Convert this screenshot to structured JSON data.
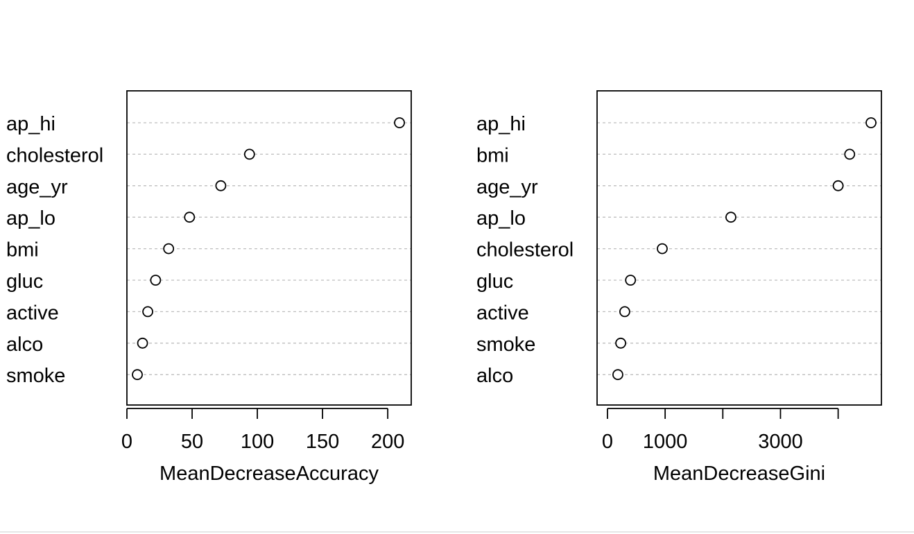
{
  "chart_data": [
    {
      "type": "scatter",
      "subtype": "dotchart",
      "xlabel": "MeanDecreaseAccuracy",
      "ylabel": "",
      "title": "",
      "categories": [
        "ap_hi",
        "cholesterol",
        "age_yr",
        "ap_lo",
        "bmi",
        "gluc",
        "active",
        "alco",
        "smoke"
      ],
      "values": [
        209,
        94,
        72,
        48,
        32,
        22,
        16,
        12,
        8
      ],
      "xlim": [
        0,
        218
      ],
      "xticks": [
        0,
        50,
        100,
        150,
        200
      ],
      "xtick_labels": [
        "0",
        "50",
        "100",
        "150",
        "200"
      ],
      "grid": "dotted horizontal lines",
      "marker": "open-circle"
    },
    {
      "type": "scatter",
      "subtype": "dotchart",
      "xlabel": "MeanDecreaseGini",
      "ylabel": "",
      "title": "",
      "categories": [
        "ap_hi",
        "bmi",
        "age_yr",
        "ap_lo",
        "cholesterol",
        "gluc",
        "active",
        "smoke",
        "alco"
      ],
      "values": [
        4570,
        4200,
        4000,
        2140,
        950,
        400,
        300,
        230,
        180
      ],
      "xlim": [
        -180,
        4750
      ],
      "xticks": [
        0,
        1000,
        2000,
        3000,
        4000
      ],
      "xtick_labels": [
        "0",
        "1000",
        "",
        "3000",
        ""
      ],
      "grid": "dotted horizontal lines",
      "marker": "open-circle"
    }
  ]
}
